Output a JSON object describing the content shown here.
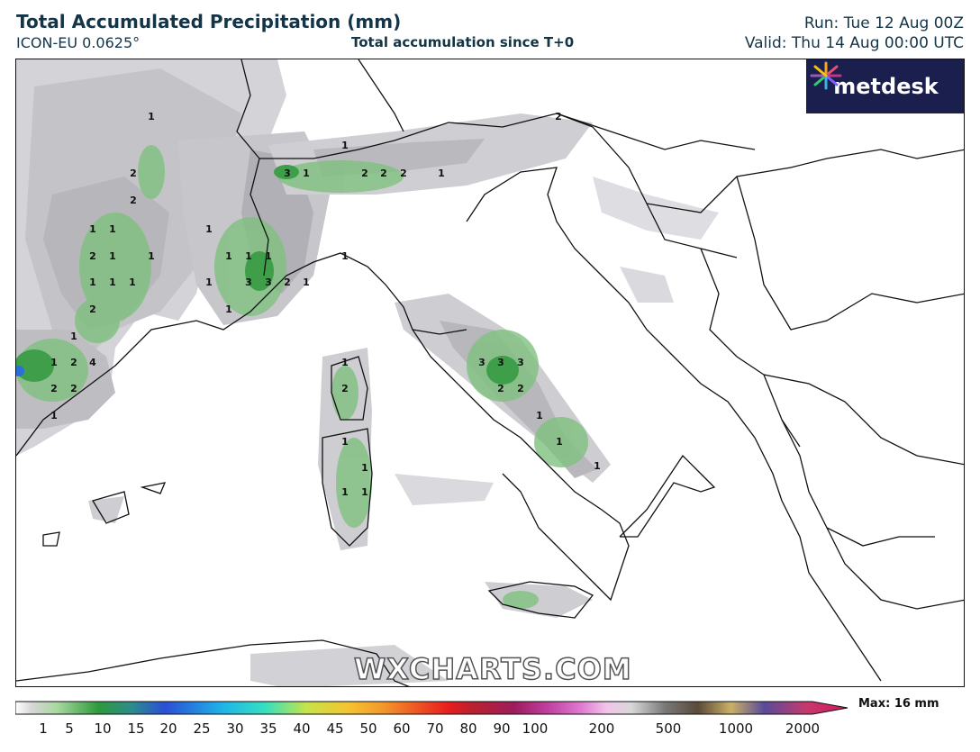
{
  "header": {
    "title": "Total Accumulated Precipitation (mm)",
    "model": "ICON-EU 0.0625°",
    "centre_title": "Total accumulation since T+0",
    "run": "Run: Tue 12 Aug 00Z",
    "valid": "Valid: Thu 14 Aug 00:00 UTC"
  },
  "logo": {
    "text": "metdesk",
    "icon": "metdesk-star-icon"
  },
  "watermark": "WXCHARTS.COM",
  "legend": {
    "max_label": "Max: 16 mm",
    "tick_labels": [
      "1",
      "5",
      "10",
      "15",
      "20",
      "25",
      "30",
      "35",
      "40",
      "45",
      "50",
      "60",
      "70",
      "80",
      "90",
      "100",
      "200",
      "500",
      "1000",
      "2000"
    ]
  },
  "map_labels": [
    {
      "text": "1"
    },
    {
      "text": "2"
    },
    {
      "text": "2"
    },
    {
      "text": "1"
    },
    {
      "text": "1"
    },
    {
      "text": "2"
    },
    {
      "text": "1"
    },
    {
      "text": "1"
    },
    {
      "text": "1"
    },
    {
      "text": "1"
    },
    {
      "text": "1"
    },
    {
      "text": "2"
    },
    {
      "text": "1"
    },
    {
      "text": "1"
    },
    {
      "text": "2"
    },
    {
      "text": "4"
    },
    {
      "text": "2"
    },
    {
      "text": "2"
    },
    {
      "text": "1"
    },
    {
      "text": "1"
    },
    {
      "text": "1"
    },
    {
      "text": "1"
    },
    {
      "text": "1"
    },
    {
      "text": "1"
    },
    {
      "text": "3"
    },
    {
      "text": "3"
    },
    {
      "text": "2"
    },
    {
      "text": "1"
    },
    {
      "text": "1"
    },
    {
      "text": "3"
    },
    {
      "text": "1"
    },
    {
      "text": "1"
    },
    {
      "text": "2"
    },
    {
      "text": "2"
    },
    {
      "text": "2"
    },
    {
      "text": "1"
    },
    {
      "text": "2"
    },
    {
      "text": "1"
    },
    {
      "text": "1"
    },
    {
      "text": "2"
    },
    {
      "text": "1"
    },
    {
      "text": "1"
    },
    {
      "text": "1"
    },
    {
      "text": "1"
    },
    {
      "text": "3"
    },
    {
      "text": "3"
    },
    {
      "text": "3"
    },
    {
      "text": "2"
    },
    {
      "text": "2"
    },
    {
      "text": "1"
    },
    {
      "text": "1"
    },
    {
      "text": "1"
    }
  ]
}
